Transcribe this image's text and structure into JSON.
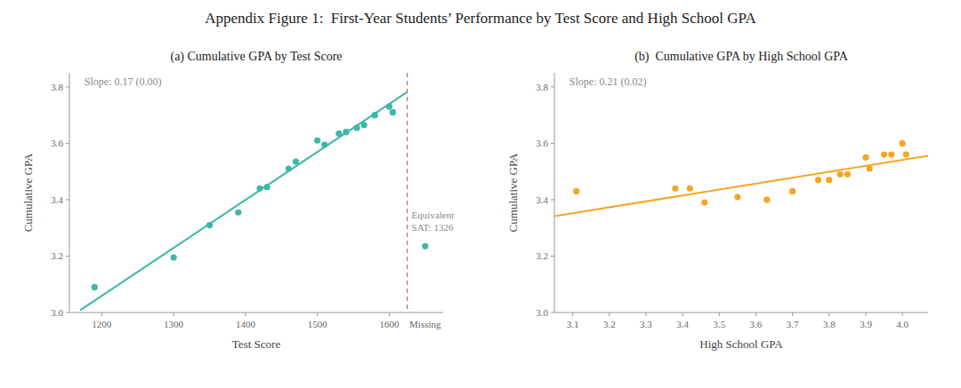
{
  "title": "Appendix Figure 1:  First-Year Students’ Performance by Test Score and High School GPA",
  "chart_data": [
    {
      "type": "scatter",
      "title": "(a) Cumulative GPA by Test Score",
      "xlabel": "Test Score",
      "ylabel": "Cumulative GPA",
      "series": [
        {
          "type": "scatter",
          "color": "#3db8a5",
          "marker": "circle",
          "x": [
            1190,
            1300,
            1350,
            1390,
            1420,
            1430,
            1460,
            1470,
            1500,
            1510,
            1530,
            1540,
            1555,
            1565,
            1580,
            1600,
            1605,
            1650
          ],
          "values": [
            3.09,
            3.195,
            3.31,
            3.355,
            3.44,
            3.445,
            3.51,
            3.535,
            3.61,
            3.595,
            3.635,
            3.64,
            3.655,
            3.665,
            3.7,
            3.73,
            3.71,
            3.235
          ]
        },
        {
          "type": "line",
          "color": "#3db8a5",
          "line_style": "solid",
          "x": [
            1170,
            1625
          ],
          "values": [
            3.0083,
            3.7818
          ]
        }
      ],
      "vlines": [
        {
          "x": 1625,
          "color": "#c8645a",
          "line_style": "dashed",
          "label": [
            "Equivalent",
            "SAT: 1326"
          ]
        }
      ],
      "annotations": [
        {
          "text": "Slope: 0.17 (0.00)"
        },
        {
          "text": "Missing",
          "x": 1650
        }
      ],
      "xlim": [
        1155,
        1675
      ],
      "ylim": [
        3.0,
        3.85
      ],
      "xticks": [
        1200,
        1300,
        1400,
        1500,
        1600
      ],
      "yticks": [
        {
          "value": 3.0,
          "label": "3.0"
        },
        3.2,
        3.4,
        3.6,
        3.8
      ],
      "grid": false
    },
    {
      "type": "scatter",
      "title": "(b)  Cumulative GPA by High School GPA",
      "xlabel": "High School GPA",
      "ylabel": "Cumulative GPA",
      "series": [
        {
          "type": "scatter",
          "color": "#f5a623",
          "marker": "circle",
          "x": [
            3.11,
            3.38,
            3.42,
            3.46,
            3.55,
            3.63,
            3.7,
            3.77,
            3.8,
            3.83,
            3.85,
            3.9,
            3.91,
            3.95,
            3.97,
            4.0,
            4.01
          ],
          "values": [
            3.43,
            3.44,
            3.44,
            3.39,
            3.41,
            3.4,
            3.43,
            3.47,
            3.47,
            3.49,
            3.49,
            3.55,
            3.51,
            3.56,
            3.56,
            3.6,
            3.56
          ]
        },
        {
          "type": "line",
          "color": "#f5a623",
          "line_style": "solid",
          "x": [
            3.05,
            4.07
          ],
          "values": [
            3.3417,
            3.5559
          ]
        }
      ],
      "annotations": [
        {
          "text": "Slope: 0.21 (0.02)"
        }
      ],
      "xlim": [
        3.05,
        4.07
      ],
      "ylim": [
        3.0,
        3.85
      ],
      "xticks": [
        3.1,
        3.2,
        3.3,
        3.4,
        3.5,
        3.6,
        3.7,
        3.8,
        3.9,
        {
          "value": 4.0,
          "label": "4.0"
        }
      ],
      "yticks": [
        {
          "value": 3.0,
          "label": "3.0"
        },
        3.2,
        3.4,
        3.6,
        3.8
      ],
      "grid": false
    }
  ]
}
